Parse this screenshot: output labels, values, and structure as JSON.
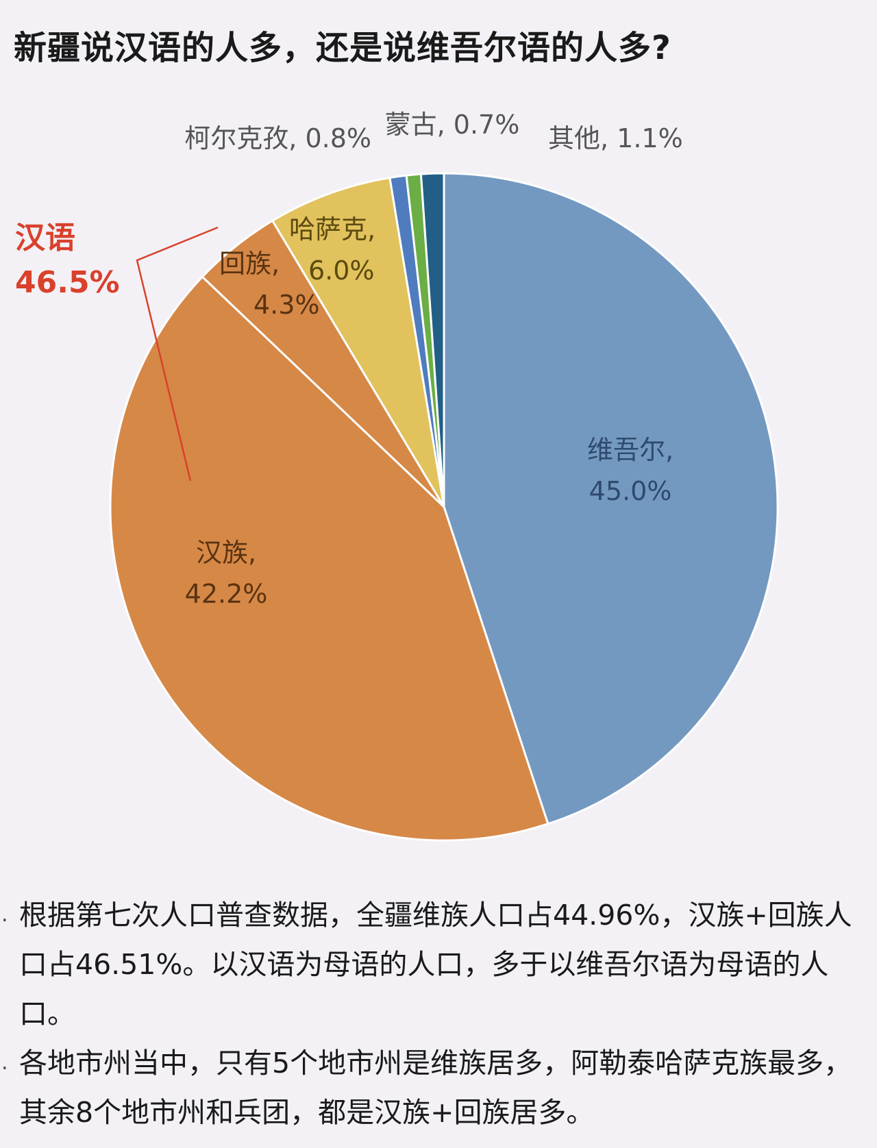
{
  "title": "新疆说汉语的人多，还是说维吾尔语的人多?",
  "chart_data": {
    "type": "pie",
    "slices": [
      {
        "name": "维吾尔",
        "value": 45.0,
        "label": "维吾尔,",
        "value_label": "45.0%",
        "color": "#7499c1"
      },
      {
        "name": "汉族",
        "value": 42.2,
        "label": "汉族,",
        "value_label": "42.2%",
        "color": "#d68847"
      },
      {
        "name": "回族",
        "value": 4.3,
        "label": "回族,",
        "value_label": "4.3%",
        "color": "#d68847"
      },
      {
        "name": "哈萨克",
        "value": 6.0,
        "label": "哈萨克,",
        "value_label": "6.0%",
        "color": "#e2c25d"
      },
      {
        "name": "柯尔克孜",
        "value": 0.8,
        "label": "柯尔克孜, 0.8%",
        "value_label": "",
        "color": "#4f7cbf"
      },
      {
        "name": "蒙古",
        "value": 0.7,
        "label": "蒙古, 0.7%",
        "value_label": "",
        "color": "#6aae45"
      },
      {
        "name": "其他",
        "value": 1.1,
        "label": "其他, 1.1%",
        "value_label": "",
        "color": "#225f86"
      }
    ],
    "callout": {
      "label": "汉语",
      "value_label": "46.5%",
      "color": "#d9412c"
    }
  },
  "notes": [
    "根据第七次人口普查数据，全疆维族人口占44.96%，汉族+回族人口占46.51%。以汉语为母语的人口，多于以维吾尔语为母语的人口。",
    "各地市州当中，只有5个地市州是维族居多，阿勒泰哈萨克族最多，其余8个地市州和兵团，都是汉族+回族居多。"
  ],
  "bullet_char": "."
}
